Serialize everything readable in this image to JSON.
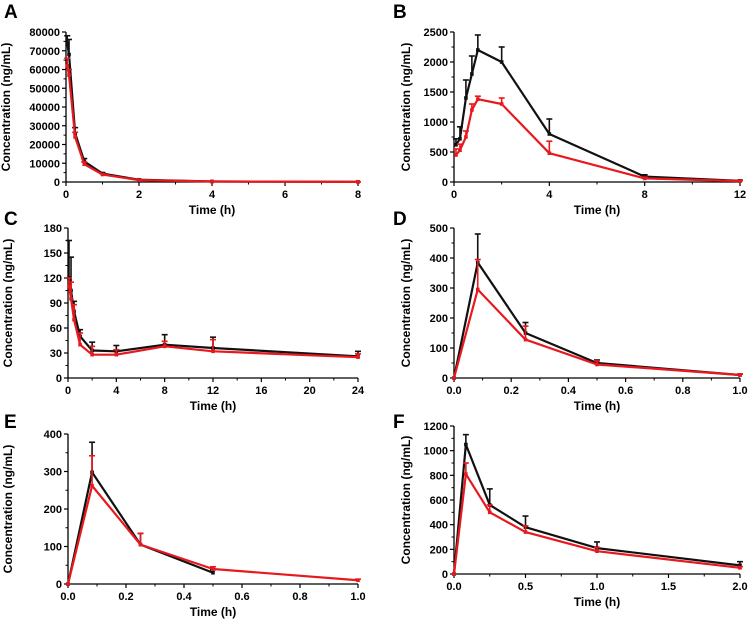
{
  "figure": {
    "colors": {
      "series1": "#111111",
      "series2": "#e8191e",
      "axis": "#000000"
    }
  },
  "chart_data": [
    {
      "panel": "A",
      "type": "line",
      "xlabel": "Time (h)",
      "ylabel": "Concentration (ng/mL)",
      "xlim": [
        0,
        8
      ],
      "ylim": [
        0,
        80000
      ],
      "xticks": [
        0,
        2,
        4,
        6,
        8
      ],
      "yticks": [
        0,
        10000,
        20000,
        30000,
        40000,
        50000,
        60000,
        70000,
        80000
      ],
      "series": [
        {
          "name": "series-1",
          "color": "#111111",
          "x": [
            0.033,
            0.083,
            0.25,
            0.5,
            1,
            2,
            4,
            8
          ],
          "y": [
            74000,
            68000,
            26000,
            11000,
            4500,
            1200,
            300,
            100
          ],
          "err": [
            4000,
            8000,
            3000,
            1500,
            500,
            200,
            50,
            20
          ]
        },
        {
          "name": "series-2",
          "color": "#e8191e",
          "x": [
            0.033,
            0.083,
            0.25,
            0.5,
            1,
            2,
            4,
            8
          ],
          "y": [
            62000,
            57000,
            24000,
            9500,
            4000,
            1000,
            250,
            80
          ],
          "err": [
            4000,
            3000,
            2500,
            1200,
            400,
            150,
            40,
            15
          ]
        }
      ]
    },
    {
      "panel": "B",
      "type": "line",
      "xlabel": "Time (h)",
      "ylabel": "Concentration (ng/mL)",
      "xlim": [
        0,
        12
      ],
      "ylim": [
        0,
        2500
      ],
      "xticks": [
        0,
        4,
        8,
        12
      ],
      "yticks": [
        0,
        500,
        1000,
        1500,
        2000,
        2500
      ],
      "series": [
        {
          "name": "series-1",
          "color": "#111111",
          "x": [
            0.083,
            0.25,
            0.5,
            0.75,
            1,
            2,
            4,
            8,
            12
          ],
          "y": [
            620,
            720,
            1400,
            1800,
            2200,
            2000,
            800,
            90,
            20
          ],
          "err": [
            100,
            200,
            300,
            300,
            250,
            250,
            250,
            30,
            10
          ]
        },
        {
          "name": "series-2",
          "color": "#e8191e",
          "x": [
            0.083,
            0.25,
            0.5,
            0.75,
            1,
            2,
            4,
            8,
            12
          ],
          "y": [
            450,
            530,
            750,
            1200,
            1380,
            1300,
            480,
            60,
            15
          ],
          "err": [
            100,
            100,
            100,
            100,
            50,
            100,
            200,
            20,
            5
          ]
        }
      ]
    },
    {
      "panel": "C",
      "type": "line",
      "xlabel": "Time (h)",
      "ylabel": "Concentration (ng/mL)",
      "xlim": [
        0,
        24
      ],
      "ylim": [
        0,
        180
      ],
      "xticks": [
        0,
        4,
        8,
        12,
        16,
        20,
        24
      ],
      "yticks": [
        0,
        30,
        60,
        90,
        120,
        150,
        180
      ],
      "series": [
        {
          "name": "series-1",
          "color": "#111111",
          "x": [
            0.083,
            0.25,
            0.5,
            1,
            2,
            4,
            8,
            12,
            24
          ],
          "y": [
            120,
            105,
            80,
            50,
            33,
            32,
            40,
            36,
            26
          ],
          "err": [
            45,
            40,
            12,
            8,
            10,
            7,
            12,
            13,
            6
          ]
        },
        {
          "name": "series-2",
          "color": "#e8191e",
          "x": [
            0.083,
            0.25,
            0.5,
            1,
            2,
            4,
            8,
            12,
            24
          ],
          "y": [
            110,
            95,
            70,
            40,
            28,
            28,
            38,
            32,
            25
          ],
          "err": [
            10,
            20,
            18,
            14,
            10,
            6,
            6,
            14,
            4
          ]
        }
      ]
    },
    {
      "panel": "D",
      "type": "line",
      "xlabel": "Time (h)",
      "ylabel": "Concentration (ng/mL)",
      "xlim": [
        0,
        1.0
      ],
      "ylim": [
        0,
        500
      ],
      "xticks": [
        0.0,
        0.2,
        0.4,
        0.6,
        0.8,
        1.0
      ],
      "yticks": [
        0,
        100,
        200,
        300,
        400,
        500
      ],
      "series": [
        {
          "name": "series-1",
          "color": "#111111",
          "x": [
            0,
            0.083,
            0.25,
            0.5,
            1.0
          ],
          "y": [
            0,
            385,
            150,
            50,
            10
          ],
          "err": [
            0,
            95,
            35,
            10,
            3
          ]
        },
        {
          "name": "series-2",
          "color": "#e8191e",
          "x": [
            0,
            0.083,
            0.25,
            0.5,
            1.0
          ],
          "y": [
            0,
            295,
            128,
            45,
            10
          ],
          "err": [
            0,
            100,
            45,
            12,
            3
          ]
        }
      ]
    },
    {
      "panel": "E",
      "type": "line",
      "xlabel": "Time (h)",
      "ylabel": "Concentration (ng/mL)",
      "xlim": [
        0,
        1.0
      ],
      "ylim": [
        0,
        400
      ],
      "xticks": [
        0.0,
        0.2,
        0.4,
        0.6,
        0.8,
        1.0
      ],
      "yticks": [
        0,
        100,
        200,
        300,
        400
      ],
      "series": [
        {
          "name": "series-1",
          "color": "#111111",
          "x": [
            0,
            0.083,
            0.25,
            0.5
          ],
          "y": [
            0,
            298,
            105,
            30
          ],
          "err": [
            0,
            80,
            30,
            8
          ]
        },
        {
          "name": "series-2",
          "color": "#e8191e",
          "x": [
            0,
            0.083,
            0.25,
            0.5,
            1.0
          ],
          "y": [
            0,
            262,
            105,
            40,
            10
          ],
          "err": [
            0,
            80,
            30,
            6,
            3
          ]
        }
      ]
    },
    {
      "panel": "F",
      "type": "line",
      "xlabel": "Time (h)",
      "ylabel": "Concentration (ng/mL)",
      "xlim": [
        0,
        2.0
      ],
      "ylim": [
        0,
        1200
      ],
      "xticks": [
        0.0,
        0.5,
        1.0,
        1.5,
        2.0
      ],
      "yticks": [
        0,
        200,
        400,
        600,
        800,
        1000,
        1200
      ],
      "series": [
        {
          "name": "series-1",
          "color": "#111111",
          "x": [
            0,
            0.083,
            0.25,
            0.5,
            1.0,
            2.0
          ],
          "y": [
            0,
            1050,
            560,
            380,
            210,
            70
          ],
          "err": [
            0,
            80,
            130,
            90,
            50,
            30
          ]
        },
        {
          "name": "series-2",
          "color": "#e8191e",
          "x": [
            0,
            0.083,
            0.25,
            0.5,
            1.0,
            2.0
          ],
          "y": [
            0,
            810,
            500,
            340,
            185,
            50
          ],
          "err": [
            0,
            90,
            60,
            50,
            30,
            10
          ]
        }
      ]
    }
  ]
}
